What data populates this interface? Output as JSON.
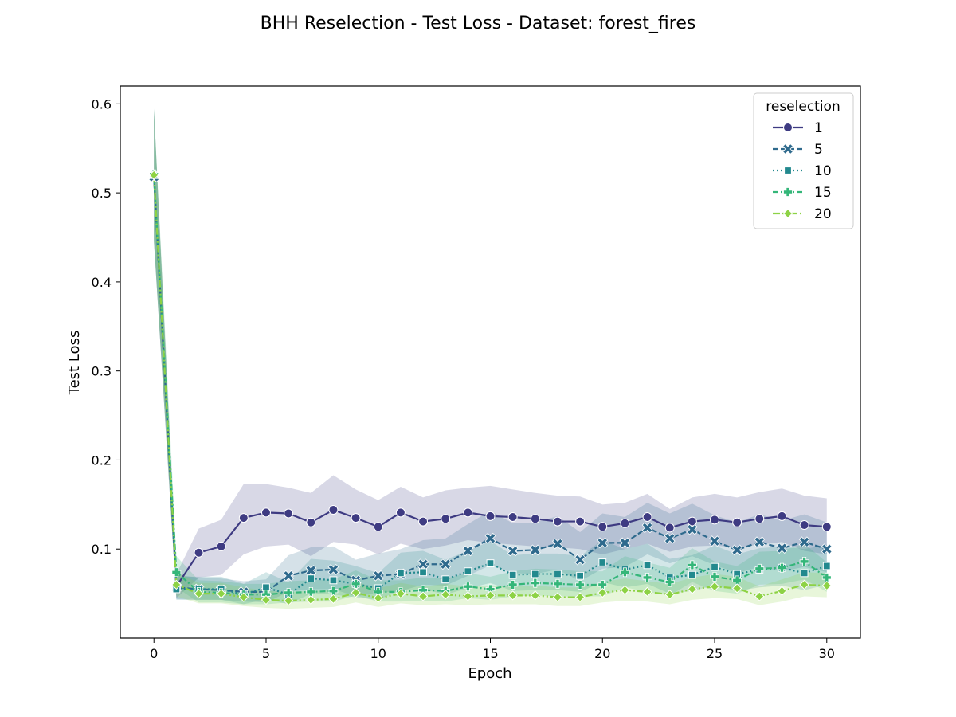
{
  "chart_data": {
    "type": "line",
    "title": "BHH Reselection - Test Loss - Dataset: forest_fires",
    "xlabel": "Epoch",
    "ylabel": "Test Loss",
    "xlim": [
      -1.5,
      31.5
    ],
    "ylim": [
      0.0,
      0.62
    ],
    "xticks": [
      0,
      5,
      10,
      15,
      20,
      25,
      30
    ],
    "yticks": [
      0.1,
      0.2,
      0.3,
      0.4,
      0.5,
      0.6
    ],
    "xtick_labels": [
      "0",
      "5",
      "10",
      "15",
      "20",
      "25",
      "30"
    ],
    "ytick_labels": [
      "0.1",
      "0.2",
      "0.3",
      "0.4",
      "0.5",
      "0.6"
    ],
    "grid": false,
    "legend": {
      "title": "reselection",
      "placement": "top-right"
    },
    "x": [
      0,
      1,
      2,
      3,
      4,
      5,
      6,
      7,
      8,
      9,
      10,
      11,
      12,
      13,
      14,
      15,
      16,
      17,
      18,
      19,
      20,
      21,
      22,
      23,
      24,
      25,
      26,
      27,
      28,
      29,
      30
    ],
    "series": [
      {
        "name": "1",
        "color": "#3e3b82",
        "marker": "circle",
        "dash": "solid",
        "values": [
          0.519,
          0.058,
          0.096,
          0.103,
          0.135,
          0.141,
          0.14,
          0.13,
          0.144,
          0.135,
          0.125,
          0.141,
          0.131,
          0.134,
          0.141,
          0.137,
          0.136,
          0.134,
          0.131,
          0.131,
          0.125,
          0.129,
          0.136,
          0.124,
          0.131,
          0.133,
          0.13,
          0.134,
          0.137,
          0.127,
          0.125
        ],
        "lower": [
          0.445,
          0.045,
          0.068,
          0.071,
          0.094,
          0.103,
          0.105,
          0.092,
          0.108,
          0.105,
          0.094,
          0.106,
          0.1,
          0.104,
          0.11,
          0.107,
          0.105,
          0.103,
          0.102,
          0.1,
          0.094,
          0.1,
          0.106,
          0.097,
          0.103,
          0.104,
          0.102,
          0.105,
          0.108,
          0.098,
          0.094
        ],
        "upper": [
          0.594,
          0.072,
          0.123,
          0.133,
          0.173,
          0.173,
          0.169,
          0.163,
          0.183,
          0.167,
          0.155,
          0.17,
          0.158,
          0.166,
          0.169,
          0.171,
          0.167,
          0.163,
          0.16,
          0.159,
          0.15,
          0.152,
          0.162,
          0.145,
          0.158,
          0.162,
          0.158,
          0.164,
          0.168,
          0.16,
          0.157
        ]
      },
      {
        "name": "5",
        "color": "#2f6a8d",
        "marker": "x",
        "dash": "dashed",
        "values": [
          0.518,
          0.057,
          0.055,
          0.054,
          0.052,
          0.052,
          0.07,
          0.076,
          0.077,
          0.065,
          0.07,
          0.072,
          0.083,
          0.083,
          0.098,
          0.112,
          0.098,
          0.099,
          0.106,
          0.088,
          0.107,
          0.107,
          0.124,
          0.112,
          0.122,
          0.109,
          0.099,
          0.108,
          0.101,
          0.108,
          0.1
        ],
        "lower": [
          0.445,
          0.044,
          0.043,
          0.043,
          0.041,
          0.04,
          0.052,
          0.055,
          0.055,
          0.047,
          0.051,
          0.053,
          0.06,
          0.059,
          0.07,
          0.082,
          0.073,
          0.072,
          0.077,
          0.064,
          0.078,
          0.08,
          0.094,
          0.084,
          0.092,
          0.082,
          0.073,
          0.08,
          0.075,
          0.08,
          0.074
        ],
        "upper": [
          0.594,
          0.071,
          0.068,
          0.067,
          0.064,
          0.066,
          0.093,
          0.102,
          0.103,
          0.088,
          0.095,
          0.1,
          0.11,
          0.112,
          0.128,
          0.143,
          0.129,
          0.13,
          0.137,
          0.119,
          0.14,
          0.136,
          0.152,
          0.14,
          0.151,
          0.138,
          0.13,
          0.139,
          0.132,
          0.139,
          0.13
        ]
      },
      {
        "name": "10",
        "color": "#22898e",
        "marker": "square",
        "dash": "dotted",
        "values": [
          0.52,
          0.055,
          0.055,
          0.055,
          0.049,
          0.057,
          0.049,
          0.067,
          0.065,
          0.061,
          0.056,
          0.073,
          0.074,
          0.066,
          0.075,
          0.084,
          0.071,
          0.072,
          0.072,
          0.07,
          0.085,
          0.077,
          0.082,
          0.068,
          0.071,
          0.08,
          0.072,
          0.077,
          0.079,
          0.073,
          0.081
        ],
        "lower": [
          0.446,
          0.043,
          0.043,
          0.043,
          0.038,
          0.044,
          0.038,
          0.05,
          0.049,
          0.046,
          0.043,
          0.054,
          0.055,
          0.049,
          0.056,
          0.062,
          0.053,
          0.054,
          0.054,
          0.052,
          0.063,
          0.057,
          0.061,
          0.05,
          0.053,
          0.059,
          0.053,
          0.057,
          0.059,
          0.054,
          0.06
        ],
        "upper": [
          0.594,
          0.069,
          0.069,
          0.069,
          0.061,
          0.074,
          0.063,
          0.089,
          0.087,
          0.081,
          0.073,
          0.096,
          0.098,
          0.088,
          0.098,
          0.109,
          0.093,
          0.095,
          0.095,
          0.092,
          0.11,
          0.1,
          0.106,
          0.089,
          0.093,
          0.104,
          0.094,
          0.101,
          0.103,
          0.1,
          0.105
        ]
      },
      {
        "name": "15",
        "color": "#34b679",
        "marker": "plus",
        "dash": "dashdot",
        "values": [
          0.521,
          0.074,
          0.052,
          0.051,
          0.049,
          0.049,
          0.051,
          0.052,
          0.053,
          0.061,
          0.052,
          0.052,
          0.054,
          0.053,
          0.058,
          0.055,
          0.06,
          0.062,
          0.061,
          0.06,
          0.06,
          0.074,
          0.068,
          0.063,
          0.082,
          0.069,
          0.065,
          0.078,
          0.079,
          0.086,
          0.068
        ],
        "lower": [
          0.447,
          0.057,
          0.04,
          0.04,
          0.038,
          0.038,
          0.04,
          0.041,
          0.041,
          0.048,
          0.041,
          0.041,
          0.042,
          0.041,
          0.045,
          0.043,
          0.047,
          0.048,
          0.047,
          0.047,
          0.047,
          0.057,
          0.052,
          0.048,
          0.063,
          0.053,
          0.05,
          0.06,
          0.061,
          0.066,
          0.052
        ],
        "upper": [
          0.595,
          0.092,
          0.065,
          0.064,
          0.061,
          0.061,
          0.064,
          0.065,
          0.066,
          0.076,
          0.065,
          0.065,
          0.068,
          0.067,
          0.073,
          0.069,
          0.075,
          0.078,
          0.077,
          0.075,
          0.075,
          0.092,
          0.085,
          0.079,
          0.101,
          0.086,
          0.081,
          0.097,
          0.098,
          0.106,
          0.085
        ]
      },
      {
        "name": "20",
        "color": "#8dd245",
        "marker": "diamond",
        "dash": "dashdotdot",
        "values": [
          0.52,
          0.06,
          0.05,
          0.05,
          0.046,
          0.043,
          0.042,
          0.043,
          0.044,
          0.051,
          0.045,
          0.05,
          0.047,
          0.049,
          0.047,
          0.048,
          0.048,
          0.048,
          0.046,
          0.046,
          0.051,
          0.054,
          0.052,
          0.049,
          0.055,
          0.058,
          0.056,
          0.047,
          0.053,
          0.06,
          0.059
        ],
        "lower": [
          0.446,
          0.047,
          0.039,
          0.039,
          0.036,
          0.034,
          0.033,
          0.034,
          0.035,
          0.04,
          0.035,
          0.039,
          0.037,
          0.038,
          0.037,
          0.038,
          0.038,
          0.038,
          0.036,
          0.036,
          0.04,
          0.042,
          0.041,
          0.038,
          0.043,
          0.045,
          0.044,
          0.037,
          0.041,
          0.047,
          0.046
        ],
        "upper": [
          0.594,
          0.074,
          0.062,
          0.062,
          0.057,
          0.053,
          0.052,
          0.053,
          0.054,
          0.063,
          0.056,
          0.062,
          0.058,
          0.061,
          0.058,
          0.059,
          0.059,
          0.059,
          0.057,
          0.057,
          0.063,
          0.067,
          0.064,
          0.061,
          0.068,
          0.072,
          0.069,
          0.058,
          0.066,
          0.074,
          0.073
        ]
      }
    ]
  }
}
